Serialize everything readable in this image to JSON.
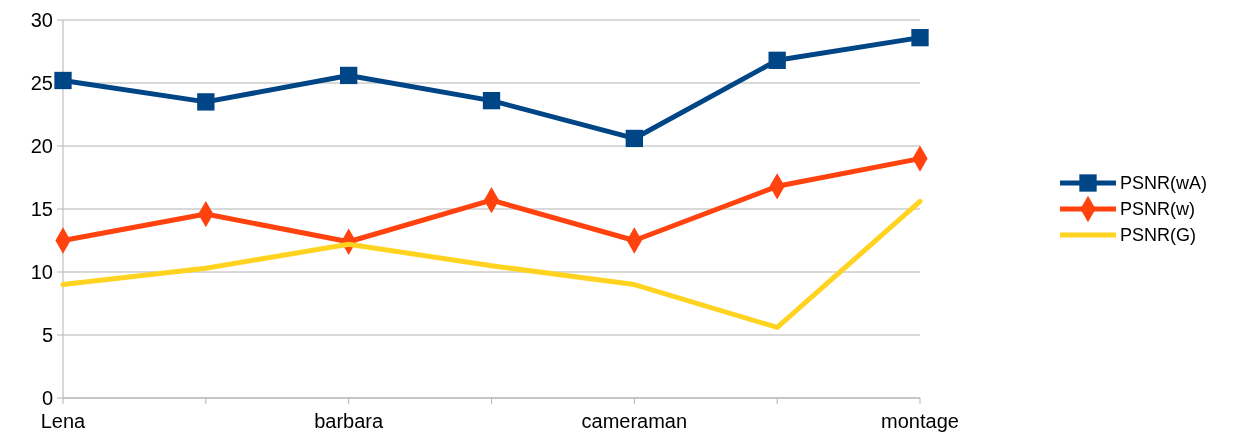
{
  "chart_data": {
    "type": "line",
    "categories": [
      "Lena",
      null,
      "barbara",
      null,
      "cameraman",
      null,
      "montage"
    ],
    "series": [
      {
        "name": "PSNR(wA)",
        "color": "#004586",
        "marker": "square",
        "values": [
          25.2,
          23.5,
          25.6,
          23.6,
          20.6,
          26.8,
          28.6
        ]
      },
      {
        "name": "PSNR(w)",
        "color": "#ff420e",
        "marker": "diamond",
        "values": [
          12.5,
          14.6,
          12.4,
          15.7,
          12.5,
          16.8,
          19.0
        ]
      },
      {
        "name": "PSNR(G)",
        "color": "#ffd320",
        "marker": "none",
        "values": [
          9.0,
          10.3,
          12.2,
          10.5,
          9.0,
          5.6,
          15.6
        ]
      }
    ],
    "ylim": [
      0,
      30
    ],
    "yticks": [
      0,
      5,
      10,
      15,
      20,
      25,
      30
    ],
    "grid": "y",
    "legend": "right"
  }
}
